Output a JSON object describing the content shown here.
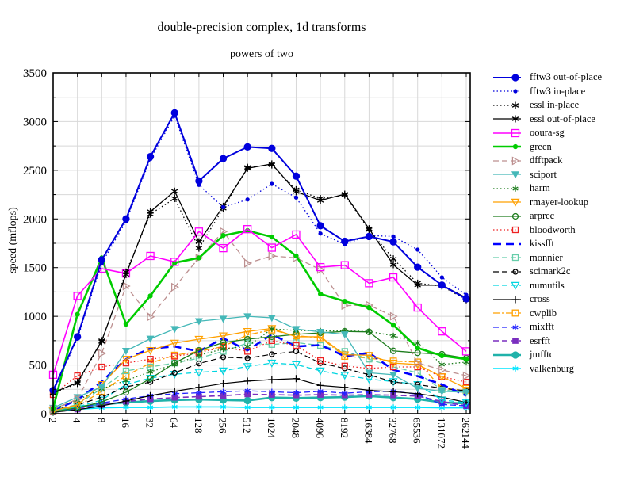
{
  "title": "double-precision complex, 1d transforms",
  "subtitle": "powers of two",
  "ylabel": "speed (mflops)",
  "chart_data": {
    "type": "line",
    "grid": true,
    "legend_position": "right",
    "x_scale": "log2-categorical",
    "categories": [
      "2",
      "4",
      "8",
      "16",
      "32",
      "64",
      "128",
      "256",
      "512",
      "1024",
      "2048",
      "4096",
      "8192",
      "16384",
      "32768",
      "65536",
      "131072",
      "262144"
    ],
    "ylim": [
      0,
      3500
    ],
    "y_tick_labels": [
      "0",
      "500",
      "1000",
      "1500",
      "2000",
      "2500",
      "3000",
      "3500"
    ],
    "y_minor_step": 250,
    "grid_color": "#d8d8d8",
    "series": [
      {
        "name": "fftw3 out-of-place",
        "color": "#0000dd",
        "dash": "solid",
        "width": 2,
        "marker": "circle",
        "marker_filled": true,
        "marker_size": 4,
        "values": [
          240,
          790,
          1580,
          2000,
          2640,
          3090,
          2390,
          2620,
          2740,
          2725,
          2440,
          1930,
          1770,
          1820,
          1765,
          1505,
          1320,
          1180
        ]
      },
      {
        "name": "fftw3 in-place",
        "color": "#0000dd",
        "dash": "dotted",
        "width": 1.3,
        "marker": "circle",
        "marker_filled": true,
        "marker_size": 2,
        "values": [
          225,
          770,
          1545,
          1975,
          2615,
          3060,
          2350,
          2120,
          2200,
          2360,
          2220,
          1850,
          1740,
          1830,
          1820,
          1685,
          1400,
          1220
        ]
      },
      {
        "name": "essl in-place",
        "color": "#000000",
        "dash": "dotted",
        "width": 1.3,
        "marker": "asterisk",
        "marker_filled": false,
        "marker_size": 4.5,
        "values": [
          210,
          310,
          740,
          1455,
          2050,
          2210,
          1700,
          2110,
          2530,
          2555,
          2300,
          2210,
          2245,
          1890,
          1590,
          1340,
          1310,
          1170
        ]
      },
      {
        "name": "essl out-of-place",
        "color": "#000000",
        "dash": "solid",
        "width": 1.3,
        "marker": "asterisk",
        "marker_filled": false,
        "marker_size": 4.5,
        "values": [
          215,
          320,
          750,
          1430,
          2075,
          2285,
          1765,
          2130,
          2520,
          2565,
          2280,
          2190,
          2255,
          1900,
          1530,
          1320,
          1320,
          1190
        ]
      },
      {
        "name": "ooura-sg",
        "color": "#ff00ff",
        "dash": "solid",
        "width": 1.6,
        "marker": "square",
        "marker_filled": false,
        "marker_size": 4.5,
        "values": [
          400,
          1210,
          1490,
          1440,
          1620,
          1560,
          1870,
          1700,
          1895,
          1705,
          1840,
          1505,
          1525,
          1340,
          1400,
          1090,
          845,
          640
        ]
      },
      {
        "name": "green",
        "color": "#00cc00",
        "dash": "solid",
        "width": 2.6,
        "marker": "circle",
        "marker_filled": true,
        "marker_size": 2.5,
        "values": [
          55,
          1020,
          1600,
          920,
          1210,
          1550,
          1600,
          1830,
          1880,
          1815,
          1620,
          1230,
          1155,
          1090,
          910,
          675,
          595,
          560
        ]
      },
      {
        "name": "dfftpack",
        "color": "#bc8f8f",
        "dash": "dashed",
        "width": 1.3,
        "marker": "triangle-right",
        "marker_filled": false,
        "marker_size": 4.5,
        "values": [
          45,
          150,
          620,
          1310,
          995,
          1300,
          1600,
          1870,
          1545,
          1620,
          1600,
          1480,
          1110,
          1115,
          1000,
          520,
          450,
          390
        ]
      },
      {
        "name": "sciport",
        "color": "#45b8b8",
        "dash": "solid",
        "width": 1.3,
        "marker": "triangle-down",
        "marker_filled": true,
        "marker_size": 4,
        "values": [
          60,
          170,
          275,
          645,
          770,
          870,
          950,
          975,
          1000,
          985,
          870,
          840,
          815,
          420,
          400,
          260,
          230,
          220
        ]
      },
      {
        "name": "harm",
        "color": "#1c7c1c",
        "dash": "dotted",
        "width": 1.3,
        "marker": "asterisk",
        "marker_filled": false,
        "marker_size": 3.8,
        "values": [
          50,
          140,
          255,
          340,
          430,
          505,
          600,
          665,
          690,
          870,
          855,
          850,
          850,
          845,
          800,
          725,
          505,
          530
        ]
      },
      {
        "name": "rmayer-lookup",
        "color": "#ffa000",
        "dash": "solid",
        "width": 1.3,
        "marker": "triangle-down",
        "marker_filled": false,
        "marker_size": 4.5,
        "values": [
          30,
          90,
          300,
          560,
          650,
          725,
          765,
          800,
          845,
          875,
          790,
          790,
          605,
          600,
          520,
          505,
          380,
          260
        ]
      },
      {
        "name": "arprec",
        "color": "#1c7c1c",
        "dash": "solid",
        "width": 1.3,
        "marker": "circle",
        "marker_filled": false,
        "marker_size": 3.5,
        "values": [
          20,
          60,
          120,
          220,
          360,
          520,
          650,
          730,
          765,
          790,
          815,
          830,
          845,
          840,
          645,
          625,
          610,
          570
        ]
      },
      {
        "name": "bloodworth",
        "color": "#ee2222",
        "dash": "dotted",
        "width": 1.3,
        "marker": "square",
        "marker_filled": false,
        "marker_size": 3.5,
        "values": [
          195,
          390,
          480,
          520,
          560,
          590,
          625,
          685,
          640,
          750,
          700,
          545,
          490,
          465,
          480,
          480,
          380,
          325
        ]
      },
      {
        "name": "kissfft",
        "color": "#0000ff",
        "dash": "longdash",
        "width": 2.6,
        "marker": "none",
        "marker_filled": false,
        "marker_size": 0,
        "values": [
          35,
          140,
          330,
          560,
          670,
          690,
          640,
          775,
          650,
          815,
          690,
          705,
          590,
          625,
          450,
          385,
          300,
          185
        ]
      },
      {
        "name": "monnier",
        "color": "#66cdaa",
        "dash": "dashed",
        "width": 1.3,
        "marker": "square",
        "marker_filled": false,
        "marker_size": 3.5,
        "values": [
          30,
          95,
          260,
          440,
          480,
          520,
          570,
          640,
          725,
          710,
          730,
          700,
          640,
          560,
          480,
          420,
          245,
          220
        ]
      },
      {
        "name": "scimark2c",
        "color": "#000000",
        "dash": "dashed",
        "width": 1.2,
        "marker": "circle",
        "marker_filled": false,
        "marker_size": 3,
        "values": [
          45,
          90,
          170,
          275,
          325,
          420,
          515,
          580,
          570,
          610,
          640,
          520,
          465,
          400,
          325,
          300,
          260,
          235
        ]
      },
      {
        "name": "numutils",
        "color": "#00d5e0",
        "dash": "dashed",
        "width": 1.3,
        "marker": "triangle-down",
        "marker_filled": false,
        "marker_size": 4.5,
        "values": [
          25,
          70,
          140,
          300,
          365,
          405,
          425,
          440,
          485,
          520,
          505,
          440,
          395,
          355,
          330,
          300,
          140,
          115
        ]
      },
      {
        "name": "cross",
        "color": "#000000",
        "dash": "solid",
        "width": 1.2,
        "marker": "plus",
        "marker_filled": false,
        "marker_size": 4.5,
        "values": [
          15,
          40,
          80,
          130,
          185,
          230,
          270,
          310,
          335,
          350,
          360,
          290,
          270,
          240,
          225,
          205,
          170,
          115
        ]
      },
      {
        "name": "cwplib",
        "color": "#ffa000",
        "dash": "dashdot",
        "width": 1.3,
        "marker": "square",
        "marker_filled": false,
        "marker_size": 3.8,
        "values": [
          25,
          75,
          230,
          390,
          520,
          600,
          640,
          690,
          810,
          860,
          800,
          780,
          590,
          570,
          540,
          530,
          260,
          240
        ]
      },
      {
        "name": "mixfft",
        "color": "#2222ff",
        "dash": "dashed",
        "width": 1.3,
        "marker": "asterisk",
        "marker_filled": false,
        "marker_size": 3.8,
        "values": [
          20,
          55,
          110,
          150,
          185,
          205,
          215,
          225,
          235,
          225,
          215,
          230,
          210,
          225,
          230,
          200,
          95,
          80
        ]
      },
      {
        "name": "esrfft",
        "color": "#7a2fbf",
        "dash": "dashed",
        "width": 1.6,
        "marker": "square",
        "marker_filled": true,
        "marker_size": 3.2,
        "values": [
          15,
          45,
          90,
          125,
          150,
          165,
          175,
          185,
          200,
          195,
          190,
          195,
          190,
          195,
          190,
          180,
          125,
          80
        ]
      },
      {
        "name": "jmfftc",
        "color": "#20b2aa",
        "dash": "solid",
        "width": 2.6,
        "marker": "circle",
        "marker_filled": true,
        "marker_size": 4,
        "values": [
          40,
          70,
          95,
          115,
          130,
          140,
          145,
          140,
          135,
          165,
          160,
          165,
          170,
          180,
          165,
          150,
          115,
          105
        ]
      },
      {
        "name": "valkenburg",
        "color": "#00e5ff",
        "dash": "solid",
        "width": 1.6,
        "marker": "asterisk",
        "marker_filled": false,
        "marker_size": 3.8,
        "values": [
          25,
          45,
          60,
          65,
          65,
          70,
          70,
          70,
          65,
          65,
          65,
          65,
          65,
          65,
          65,
          65,
          60,
          60
        ]
      }
    ]
  }
}
